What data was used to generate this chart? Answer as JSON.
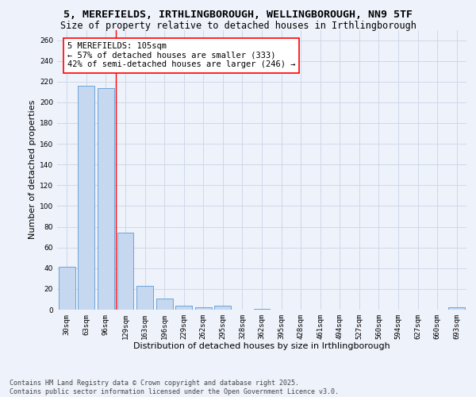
{
  "title_line1": "5, MEREFIELDS, IRTHLINGBOROUGH, WELLINGBOROUGH, NN9 5TF",
  "title_line2": "Size of property relative to detached houses in Irthlingborough",
  "xlabel": "Distribution of detached houses by size in Irthlingborough",
  "ylabel": "Number of detached properties",
  "categories": [
    "30sqm",
    "63sqm",
    "96sqm",
    "129sqm",
    "163sqm",
    "196sqm",
    "229sqm",
    "262sqm",
    "295sqm",
    "328sqm",
    "362sqm",
    "395sqm",
    "428sqm",
    "461sqm",
    "494sqm",
    "527sqm",
    "560sqm",
    "594sqm",
    "627sqm",
    "660sqm",
    "693sqm"
  ],
  "values": [
    41,
    216,
    214,
    74,
    23,
    11,
    4,
    2,
    4,
    0,
    1,
    0,
    0,
    0,
    0,
    0,
    0,
    0,
    0,
    0,
    2
  ],
  "bar_color": "#c5d8f0",
  "bar_edge_color": "#5b9bd5",
  "grid_color": "#d0d8e8",
  "background_color": "#eef2fa",
  "red_line_x": 2.5,
  "annotation_text": "5 MEREFIELDS: 105sqm\n← 57% of detached houses are smaller (333)\n42% of semi-detached houses are larger (246) →",
  "annotation_box_color": "white",
  "annotation_box_edge_color": "red",
  "ylim": [
    0,
    270
  ],
  "yticks": [
    0,
    20,
    40,
    60,
    80,
    100,
    120,
    140,
    160,
    180,
    200,
    220,
    240,
    260
  ],
  "footer": "Contains HM Land Registry data © Crown copyright and database right 2025.\nContains public sector information licensed under the Open Government Licence v3.0.",
  "title_fontsize": 9.5,
  "subtitle_fontsize": 8.5,
  "axis_label_fontsize": 8,
  "tick_fontsize": 6.5,
  "annotation_fontsize": 7.5,
  "footer_fontsize": 6
}
